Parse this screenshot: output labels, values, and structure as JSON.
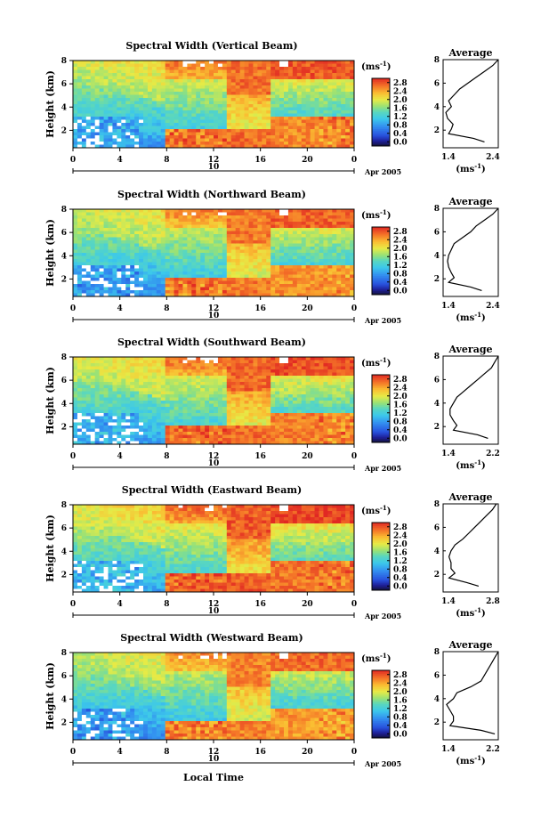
{
  "figure": {
    "x_label_bottom": "Local Time"
  },
  "chart_data": [
    {
      "type": "heatmap",
      "title": "Spectral Width (Vertical Beam)",
      "ylabel": "Height (km)",
      "xlim": [
        0,
        24
      ],
      "ylim": [
        0.5,
        8
      ],
      "x_ticks": [
        "0",
        "4",
        "8",
        "12",
        "16",
        "20",
        "0"
      ],
      "x_tick_values": [
        0,
        4,
        8,
        12,
        16,
        20,
        24
      ],
      "y_ticks": [
        "2",
        "4",
        "6",
        "8"
      ],
      "date_marker": "10",
      "date_label": "Apr 2005",
      "colorbar": {
        "unit": "(ms-1)",
        "range": [
          0,
          2.8
        ],
        "ticks": [
          "2.8",
          "2.4",
          "2.0",
          "1.6",
          "1.2",
          "0.8",
          "0.4",
          "0.0"
        ]
      },
      "profile": {
        "title": "Average",
        "xlim": [
          1.4,
          2.4
        ],
        "x_ticks": [
          "1.4",
          "2.4"
        ],
        "y_ticks": [
          "2",
          "4",
          "6",
          "8"
        ],
        "xlabel": "(ms-1)",
        "height": [
          1.0,
          1.3,
          1.7,
          2.1,
          2.5,
          3.0,
          3.5,
          4.0,
          4.5,
          5.0,
          5.5,
          6.0,
          6.5,
          7.0,
          7.5,
          8.0
        ],
        "width": [
          2.15,
          1.95,
          1.5,
          1.55,
          1.58,
          1.48,
          1.45,
          1.55,
          1.5,
          1.6,
          1.7,
          1.85,
          2.0,
          2.15,
          2.3,
          2.4
        ]
      }
    },
    {
      "type": "heatmap",
      "title": "Spectral Width (Northward Beam)",
      "ylabel": "Height (km)",
      "xlim": [
        0,
        24
      ],
      "ylim": [
        0.5,
        8
      ],
      "x_ticks": [
        "0",
        "4",
        "8",
        "12",
        "16",
        "20",
        "0"
      ],
      "x_tick_values": [
        0,
        4,
        8,
        12,
        16,
        20,
        24
      ],
      "y_ticks": [
        "2",
        "4",
        "6",
        "8"
      ],
      "date_marker": "10",
      "date_label": "Apr 2005",
      "colorbar": {
        "unit": "(ms-1)",
        "range": [
          0,
          2.8
        ],
        "ticks": [
          "2.8",
          "2.4",
          "2.0",
          "1.6",
          "1.2",
          "0.8",
          "0.4",
          "0.0"
        ]
      },
      "profile": {
        "title": "Average",
        "xlim": [
          1.4,
          2.4
        ],
        "x_ticks": [
          "1.4",
          "2.4"
        ],
        "y_ticks": [
          "2",
          "4",
          "6",
          "8"
        ],
        "xlabel": "(ms-1)",
        "height": [
          1.0,
          1.3,
          1.7,
          2.1,
          2.5,
          3.0,
          3.5,
          4.0,
          4.5,
          5.0,
          5.5,
          6.0,
          6.5,
          7.0,
          7.5,
          8.0
        ],
        "width": [
          2.1,
          1.9,
          1.5,
          1.6,
          1.55,
          1.5,
          1.48,
          1.5,
          1.55,
          1.6,
          1.75,
          1.9,
          2.0,
          2.15,
          2.3,
          2.4
        ]
      }
    },
    {
      "type": "heatmap",
      "title": "Spectral Width (Southward Beam)",
      "ylabel": "Height (km)",
      "xlim": [
        0,
        24
      ],
      "ylim": [
        0.5,
        8
      ],
      "x_ticks": [
        "0",
        "4",
        "8",
        "12",
        "16",
        "20",
        "0"
      ],
      "x_tick_values": [
        0,
        4,
        8,
        12,
        16,
        20,
        24
      ],
      "y_ticks": [
        "2",
        "4",
        "6",
        "8"
      ],
      "date_marker": "10",
      "date_label": "Apr 2005",
      "colorbar": {
        "unit": "(ms-1)",
        "range": [
          0,
          2.8
        ],
        "ticks": [
          "2.8",
          "2.4",
          "2.0",
          "1.6",
          "1.2",
          "0.8",
          "0.4",
          "0.0"
        ]
      },
      "profile": {
        "title": "Average",
        "xlim": [
          1.4,
          2.2
        ],
        "x_ticks": [
          "1.4",
          "2.2"
        ],
        "y_ticks": [
          "2",
          "4",
          "6",
          "8"
        ],
        "xlabel": "(ms-1)",
        "height": [
          1.0,
          1.3,
          1.7,
          2.1,
          2.5,
          3.0,
          3.5,
          4.0,
          4.5,
          5.0,
          5.5,
          6.0,
          6.5,
          7.0,
          7.5,
          8.0
        ],
        "width": [
          2.05,
          1.9,
          1.55,
          1.6,
          1.55,
          1.5,
          1.5,
          1.55,
          1.6,
          1.7,
          1.8,
          1.9,
          2.0,
          2.1,
          2.15,
          2.2
        ]
      }
    },
    {
      "type": "heatmap",
      "title": "Spectral Width (Eastward Beam)",
      "ylabel": "Height (km)",
      "xlim": [
        0,
        24
      ],
      "ylim": [
        0.5,
        8
      ],
      "x_ticks": [
        "0",
        "4",
        "8",
        "12",
        "16",
        "20",
        "0"
      ],
      "x_tick_values": [
        0,
        4,
        8,
        12,
        16,
        20,
        24
      ],
      "y_ticks": [
        "2",
        "4",
        "6",
        "8"
      ],
      "date_marker": "10",
      "date_label": "Apr 2005",
      "colorbar": {
        "unit": "(ms-1)",
        "range": [
          0,
          2.8
        ],
        "ticks": [
          "2.8",
          "2.4",
          "2.0",
          "1.6",
          "1.2",
          "0.8",
          "0.4",
          "0.0"
        ]
      },
      "profile": {
        "title": "Average",
        "xlim": [
          1.4,
          2.8
        ],
        "x_ticks": [
          "1.4",
          "2.8"
        ],
        "y_ticks": [
          "2",
          "4",
          "6",
          "8"
        ],
        "xlabel": "(ms-1)",
        "height": [
          1.0,
          1.3,
          1.7,
          2.1,
          2.5,
          3.0,
          3.5,
          4.0,
          4.5,
          5.0,
          5.5,
          6.0,
          6.5,
          7.0,
          7.5,
          8.0
        ],
        "width": [
          2.3,
          2.0,
          1.55,
          1.7,
          1.6,
          1.6,
          1.55,
          1.6,
          1.7,
          1.9,
          2.05,
          2.2,
          2.35,
          2.5,
          2.65,
          2.75
        ]
      }
    },
    {
      "type": "heatmap",
      "title": "Spectral Width (Westward Beam)",
      "ylabel": "Height (km)",
      "xlim": [
        0,
        24
      ],
      "ylim": [
        0.5,
        8
      ],
      "x_ticks": [
        "0",
        "4",
        "8",
        "12",
        "16",
        "20",
        "0"
      ],
      "x_tick_values": [
        0,
        4,
        8,
        12,
        16,
        20,
        24
      ],
      "y_ticks": [
        "2",
        "4",
        "6",
        "8"
      ],
      "date_marker": "10",
      "date_label": "Apr 2005",
      "colorbar": {
        "unit": "(ms-1)",
        "range": [
          0,
          2.8
        ],
        "ticks": [
          "2.8",
          "2.4",
          "2.0",
          "1.6",
          "1.2",
          "0.8",
          "0.4",
          "0.0"
        ]
      },
      "profile": {
        "title": "Average",
        "xlim": [
          1.4,
          2.2
        ],
        "x_ticks": [
          "1.4",
          "2.2"
        ],
        "y_ticks": [
          "2",
          "4",
          "6",
          "8"
        ],
        "xlabel": "(ms-1)",
        "height": [
          1.0,
          1.3,
          1.7,
          2.1,
          2.5,
          3.0,
          3.5,
          4.0,
          4.5,
          5.0,
          5.5,
          6.0,
          6.5,
          7.0,
          7.5,
          8.0
        ],
        "width": [
          2.15,
          1.95,
          1.5,
          1.55,
          1.55,
          1.5,
          1.45,
          1.55,
          1.6,
          1.8,
          1.95,
          2.0,
          2.05,
          2.1,
          2.15,
          2.2
        ]
      }
    }
  ]
}
